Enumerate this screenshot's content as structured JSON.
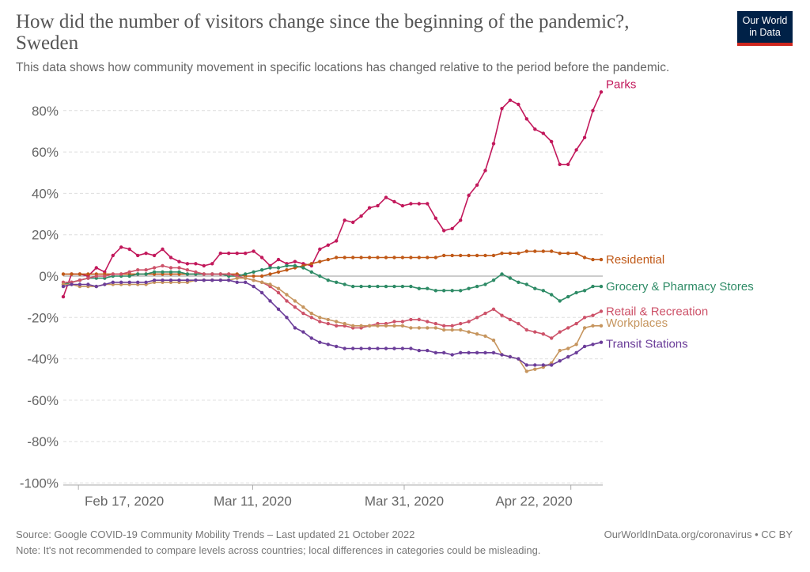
{
  "header": {
    "title": "How did the number of visitors change since the beginning of the pandemic?, Sweden",
    "subtitle": "This data shows how community movement in specific locations has changed relative to the period before the pandemic.",
    "logo_line1": "Our World",
    "logo_line2": "in Data",
    "logo_bg": "#002147",
    "logo_accent": "#ce261e"
  },
  "footer": {
    "source": "Source: Google COVID-19 Community Mobility Trends – Last updated 21 October 2022",
    "credit": "OurWorldInData.org/coronavirus • CC BY",
    "note": "Note: It's not recommended to compare levels across countries; local differences in categories could be misleading."
  },
  "chart_data": {
    "type": "line",
    "title": "How did the number of visitors change since the beginning of the pandemic?, Sweden",
    "x_start": "2020-02-15",
    "x_end": "2020-04-26",
    "x_ticks": [
      "Feb 17, 2020",
      "Mar 11, 2020",
      "Mar 31, 2020",
      "Apr 22, 2020"
    ],
    "x_tick_dates": [
      "2020-02-17",
      "2020-03-11",
      "2020-03-31",
      "2020-04-22"
    ],
    "ylim": [
      -100,
      90
    ],
    "y_ticks": [
      "-100%",
      "-80%",
      "-60%",
      "-40%",
      "-20%",
      "0%",
      "20%",
      "40%",
      "60%",
      "80%"
    ],
    "y_tick_values": [
      -100,
      -80,
      -60,
      -40,
      -20,
      0,
      20,
      40,
      60,
      80
    ],
    "unit": "%",
    "grid": true,
    "legend": "right-end-labels",
    "series": [
      {
        "name": "Parks",
        "color": "#c2185b",
        "values": [
          -10,
          1,
          1,
          0,
          4,
          2,
          10,
          14,
          13,
          10,
          11,
          10,
          13,
          9,
          7,
          6,
          6,
          5,
          6,
          11,
          11,
          11,
          11,
          12,
          9,
          5,
          8,
          6,
          7,
          6,
          5,
          13,
          15,
          17,
          27,
          26,
          29,
          33,
          34,
          38,
          36,
          34,
          35,
          35,
          35,
          28,
          22,
          23,
          27,
          39,
          44,
          51,
          64,
          81,
          85,
          83,
          76,
          71,
          69,
          65,
          54,
          54,
          61,
          67,
          80,
          89
        ]
      },
      {
        "name": "Residential",
        "color": "#c05917",
        "values": [
          1,
          1,
          1,
          1,
          1,
          1,
          1,
          1,
          1,
          1,
          1,
          1,
          1,
          1,
          1,
          1,
          1,
          1,
          1,
          1,
          1,
          1,
          0,
          0,
          0,
          1,
          2,
          3,
          4,
          5,
          6,
          7,
          8,
          9,
          9,
          9,
          9,
          9,
          9,
          9,
          9,
          9,
          9,
          9,
          9,
          9,
          10,
          10,
          10,
          10,
          10,
          10,
          10,
          11,
          11,
          11,
          12,
          12,
          12,
          12,
          11,
          11,
          11,
          9,
          8,
          8
        ]
      },
      {
        "name": "Grocery & Pharmacy Stores",
        "color": "#2e8b66",
        "values": [
          -4,
          -3,
          -2,
          -1,
          -1,
          -1,
          0,
          0,
          0,
          1,
          1,
          2,
          2,
          2,
          2,
          1,
          1,
          1,
          1,
          1,
          0,
          0,
          1,
          2,
          3,
          4,
          4,
          5,
          5,
          4,
          2,
          0,
          -2,
          -3,
          -4,
          -5,
          -5,
          -5,
          -5,
          -5,
          -5,
          -5,
          -5,
          -6,
          -6,
          -7,
          -7,
          -7,
          -7,
          -6,
          -5,
          -4,
          -2,
          1,
          -1,
          -3,
          -4,
          -6,
          -7,
          -9,
          -12,
          -10,
          -8,
          -7,
          -5,
          -5
        ]
      },
      {
        "name": "Retail & Recreation",
        "color": "#cd5269",
        "values": [
          -3,
          -3,
          -2,
          -1,
          0,
          0,
          1,
          1,
          2,
          3,
          3,
          4,
          5,
          4,
          4,
          3,
          2,
          1,
          1,
          1,
          1,
          0,
          -1,
          -2,
          -3,
          -5,
          -8,
          -12,
          -15,
          -18,
          -20,
          -22,
          -23,
          -24,
          -24,
          -25,
          -25,
          -24,
          -23,
          -23,
          -22,
          -22,
          -21,
          -21,
          -22,
          -23,
          -24,
          -24,
          -23,
          -22,
          -20,
          -18,
          -16,
          -19,
          -21,
          -23,
          -26,
          -27,
          -28,
          -30,
          -27,
          -25,
          -23,
          -20,
          -19,
          -17
        ]
      },
      {
        "name": "Workplaces",
        "color": "#c6955e",
        "values": [
          -4,
          -4,
          -5,
          -5,
          -5,
          -4,
          -4,
          -4,
          -4,
          -4,
          -4,
          -3,
          -3,
          -3,
          -3,
          -3,
          -2,
          -2,
          -2,
          -2,
          -2,
          -1,
          -1,
          -2,
          -3,
          -4,
          -6,
          -9,
          -12,
          -15,
          -18,
          -20,
          -21,
          -22,
          -23,
          -24,
          -24,
          -24,
          -24,
          -24,
          -24,
          -24,
          -25,
          -25,
          -25,
          -25,
          -26,
          -26,
          -26,
          -27,
          -28,
          -29,
          -31,
          -38,
          -39,
          -40,
          -46,
          -45,
          -44,
          -42,
          -36,
          -35,
          -33,
          -25,
          -24,
          -24
        ]
      },
      {
        "name": "Transit Stations",
        "color": "#6b3d99",
        "values": [
          -5,
          -4,
          -4,
          -4,
          -5,
          -4,
          -3,
          -3,
          -3,
          -3,
          -3,
          -2,
          -2,
          -2,
          -2,
          -2,
          -2,
          -2,
          -2,
          -2,
          -2,
          -3,
          -3,
          -5,
          -8,
          -12,
          -16,
          -20,
          -25,
          -27,
          -30,
          -32,
          -33,
          -34,
          -35,
          -35,
          -35,
          -35,
          -35,
          -35,
          -35,
          -35,
          -35,
          -36,
          -36,
          -37,
          -37,
          -38,
          -37,
          -37,
          -37,
          -37,
          -37,
          -38,
          -39,
          -40,
          -43,
          -43,
          -43,
          -43,
          -41,
          -39,
          -37,
          -34,
          -33,
          -32
        ]
      }
    ]
  }
}
